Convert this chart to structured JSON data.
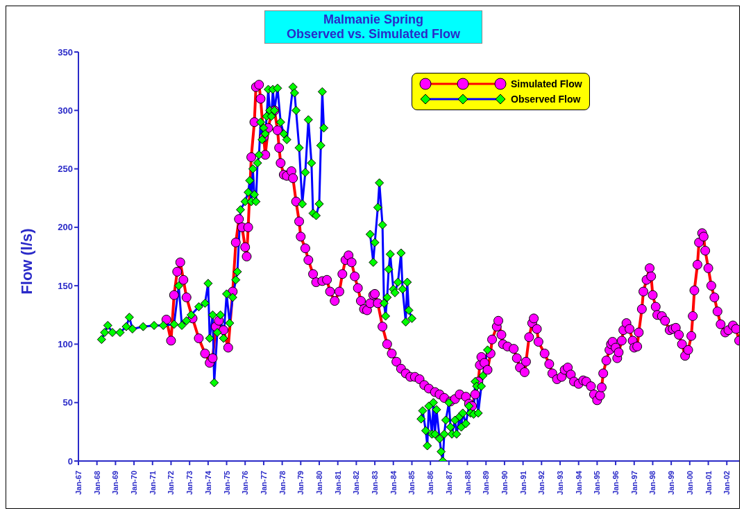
{
  "chart_data": {
    "type": "line",
    "title": "Malmanie Spring",
    "subtitle": "Observed vs. Simulated Flow",
    "ylabel": "Flow (l/s)",
    "xlim": [
      "1967-01",
      "2002-09"
    ],
    "xticks": [
      {
        "value": "1967-01",
        "label": "Jan-67"
      },
      {
        "value": "1968-01",
        "label": "Jan-68"
      },
      {
        "value": "1969-01",
        "label": "Jan-69"
      },
      {
        "value": "1970-01",
        "label": "Jan-70"
      },
      {
        "value": "1971-01",
        "label": "Jan-71"
      },
      {
        "value": "1972-01",
        "label": "Jan-72"
      },
      {
        "value": "1973-01",
        "label": "Jan-73"
      },
      {
        "value": "1974-01",
        "label": "Jan-74"
      },
      {
        "value": "1975-01",
        "label": "Jan-75"
      },
      {
        "value": "1976-01",
        "label": "Jan-76"
      },
      {
        "value": "1977-01",
        "label": "Jan-77"
      },
      {
        "value": "1978-01",
        "label": "Jan-78"
      },
      {
        "value": "1979-01",
        "label": "Jan-79"
      },
      {
        "value": "1980-01",
        "label": "Jan-80"
      },
      {
        "value": "1981-01",
        "label": "Jan-81"
      },
      {
        "value": "1982-01",
        "label": "Jan-82"
      },
      {
        "value": "1983-01",
        "label": "Jan-83"
      },
      {
        "value": "1984-01",
        "label": "Jan-84"
      },
      {
        "value": "1985-01",
        "label": "Jan-85"
      },
      {
        "value": "1986-01",
        "label": "Jan-86"
      },
      {
        "value": "1987-01",
        "label": "Jan-87"
      },
      {
        "value": "1988-01",
        "label": "Jan-88"
      },
      {
        "value": "1989-01",
        "label": "Jan-89"
      },
      {
        "value": "1990-01",
        "label": "Jan-90"
      },
      {
        "value": "1991-01",
        "label": "Jan-91"
      },
      {
        "value": "1992-01",
        "label": "Jan-92"
      },
      {
        "value": "1993-01",
        "label": "Jan-93"
      },
      {
        "value": "1994-01",
        "label": "Jan-94"
      },
      {
        "value": "1995-01",
        "label": "Jan-95"
      },
      {
        "value": "1996-01",
        "label": "Jan-96"
      },
      {
        "value": "1997-01",
        "label": "Jan-97"
      },
      {
        "value": "1998-01",
        "label": "Jan-98"
      },
      {
        "value": "1999-01",
        "label": "Jan-99"
      },
      {
        "value": "2000-01",
        "label": "Jan-00"
      },
      {
        "value": "2001-01",
        "label": "Jan-01"
      },
      {
        "value": "2002-01",
        "label": "Jan-02"
      }
    ],
    "ylim": [
      0,
      350
    ],
    "yticks": [
      0,
      50,
      100,
      150,
      200,
      250,
      300,
      350
    ],
    "legend": "top right",
    "series": [
      {
        "name": "Simulated Flow",
        "color": "#ff0000",
        "marker": "circle",
        "x": [
          "1971-10",
          "1972-01",
          "1972-03",
          "1972-05",
          "1972-07",
          "1972-09",
          "1972-11",
          "1973-03",
          "1973-07",
          "1973-11",
          "1974-02",
          "1974-04",
          "1974-06",
          "1974-08",
          "1974-11",
          "1975-02",
          "1975-05",
          "1975-07",
          "1975-09",
          "1975-11",
          "1976-01",
          "1976-02",
          "1976-03",
          "1976-05",
          "1976-07",
          "1976-08",
          "1976-10",
          "1976-11",
          "1977-01",
          "1977-02",
          "1977-04",
          "1977-06",
          "1977-08",
          "1977-10",
          "1977-11",
          "1977-12",
          "1978-02",
          "1978-04",
          "1978-07",
          "1978-08",
          "1978-10",
          "1978-12",
          "1979-01",
          "1979-04",
          "1979-06",
          "1979-09",
          "1979-11",
          "1980-03",
          "1980-06",
          "1980-08",
          "1980-11",
          "1981-02",
          "1981-04",
          "1981-06",
          "1981-08",
          "1981-10",
          "1981-12",
          "1982-02",
          "1982-04",
          "1982-06",
          "1982-08",
          "1982-10",
          "1982-12",
          "1983-01",
          "1983-03",
          "1983-06",
          "1983-09",
          "1983-12",
          "1984-03",
          "1984-06",
          "1984-09",
          "1984-12",
          "1985-03",
          "1985-06",
          "1985-09",
          "1985-12",
          "1986-04",
          "1986-07",
          "1986-10",
          "1987-02",
          "1987-05",
          "1987-08",
          "1987-12",
          "1988-02",
          "1988-04",
          "1988-06",
          "1988-08",
          "1988-09",
          "1988-10",
          "1988-12",
          "1989-02",
          "1989-04",
          "1989-05",
          "1989-08",
          "1989-09",
          "1989-11",
          "1989-12",
          "1990-03",
          "1990-07",
          "1990-09",
          "1990-11",
          "1991-02",
          "1991-03",
          "1991-05",
          "1991-07",
          "1991-08",
          "1991-10",
          "1991-11",
          "1992-03",
          "1992-06",
          "1992-08",
          "1992-11",
          "1993-02",
          "1993-04",
          "1993-06",
          "1993-08",
          "1993-10",
          "1994-01",
          "1994-04",
          "1994-06",
          "1994-09",
          "1994-11",
          "1995-01",
          "1995-03",
          "1995-04",
          "1995-05",
          "1995-07",
          "1995-09",
          "1995-10",
          "1995-11",
          "1996-01",
          "1996-02",
          "1996-03",
          "1996-05",
          "1996-06",
          "1996-08",
          "1996-10",
          "1996-12",
          "1997-01",
          "1997-03",
          "1997-04",
          "1997-06",
          "1997-07",
          "1997-09",
          "1997-11",
          "1997-12",
          "1998-01",
          "1998-03",
          "1998-04",
          "1998-07",
          "1998-09",
          "1998-12",
          "1999-02",
          "1999-04",
          "1999-06",
          "1999-08",
          "1999-10",
          "1999-12",
          "2000-02",
          "2000-03",
          "2000-04",
          "2000-06",
          "2000-07",
          "2000-09",
          "2000-10",
          "2000-11",
          "2001-01",
          "2001-03",
          "2001-05",
          "2001-07",
          "2001-09",
          "2001-12",
          "2002-02",
          "2002-05",
          "2002-07",
          "2002-09"
        ],
        "values": [
          121,
          103,
          142,
          162,
          170,
          155,
          140,
          122,
          105,
          92,
          84,
          88,
          115,
          120,
          112,
          97,
          145,
          187,
          207,
          200,
          183,
          175,
          200,
          260,
          290,
          320,
          322,
          310,
          277,
          262,
          285,
          297,
          300,
          283,
          268,
          255,
          245,
          244,
          248,
          242,
          222,
          205,
          192,
          182,
          172,
          160,
          153,
          154,
          155,
          145,
          137,
          145,
          160,
          172,
          176,
          170,
          158,
          148,
          137,
          130,
          129,
          135,
          142,
          143,
          135,
          115,
          100,
          92,
          85,
          79,
          75,
          72,
          72,
          70,
          65,
          62,
          59,
          57,
          54,
          51,
          53,
          57,
          55,
          49,
          47,
          57,
          68,
          82,
          89,
          84,
          78,
          92,
          104,
          115,
          120,
          108,
          100,
          98,
          96,
          88,
          80,
          76,
          85,
          106,
          118,
          122,
          113,
          102,
          92,
          83,
          75,
          70,
          72,
          78,
          80,
          74,
          68,
          66,
          69,
          68,
          64,
          57,
          52,
          56,
          63,
          75,
          86,
          95,
          100,
          102,
          97,
          88,
          93,
          103,
          112,
          118,
          113,
          103,
          97,
          98,
          110,
          130,
          145,
          155,
          165,
          158,
          142,
          132,
          125,
          124,
          120,
          112,
          113,
          114,
          108,
          100,
          90,
          95,
          107,
          124,
          146,
          168,
          187,
          195,
          192,
          180,
          165,
          150,
          140,
          128,
          117,
          110,
          112,
          116,
          113,
          103
        ]
      },
      {
        "name": "Observed Flow",
        "color": "#0000ff",
        "marker": "diamond",
        "x": [
          "1968-04",
          "1968-06",
          "1968-08",
          "1968-11",
          "1969-04",
          "1969-08",
          "1969-10",
          "1969-12",
          "1970-07",
          "1971-02",
          "1971-08",
          "1972-03",
          "1972-06",
          "1972-08",
          "1972-11",
          "1973-02",
          "1973-07",
          "1973-11",
          "1974-01",
          "1974-02",
          "1974-04",
          "1974-05",
          "1974-07",
          "1974-09",
          "1974-11",
          "1975-01",
          "1975-03",
          "1975-05",
          "1975-07",
          "1975-08",
          "1975-10",
          "1976-01",
          "1976-03",
          "1976-04",
          "1976-05",
          "1976-06",
          "1976-07",
          "1976-08",
          "1976-09",
          "1976-10",
          "1976-11",
          "1976-12",
          "1977-01",
          "1977-02",
          "1977-03",
          "1977-04",
          "1977-05",
          "1977-06",
          "1977-07",
          "1977-08",
          "1977-10",
          "1977-12",
          "1978-02",
          "1978-04",
          "1978-08",
          "1978-09",
          "1978-10",
          "1978-12",
          "1979-02",
          "1979-04",
          "1979-06",
          "1979-08",
          "1979-09",
          "1979-11",
          "1980-01",
          "1980-02",
          "1980-03",
          "1980-04",
          "1981-06",
          "1982-10",
          "1982-12",
          "1983-01",
          "1983-03",
          "1983-04",
          "1983-06",
          "1983-07",
          "1983-08",
          "1983-09",
          "1983-10",
          "1983-11",
          "1984-01",
          "1984-02",
          "1984-04",
          "1984-06",
          "1984-07",
          "1984-09",
          "1984-10",
          "1984-11",
          "1985-01",
          "1985-04",
          "1985-07",
          "1985-08",
          "1985-10",
          "1985-11",
          "1985-12",
          "1986-02",
          "1986-03",
          "1986-04",
          "1986-05",
          "1986-07",
          "1986-08",
          "1986-09",
          "1986-10",
          "1986-11",
          "1987-01",
          "1987-02",
          "1987-03",
          "1987-05",
          "1987-06",
          "1987-08",
          "1987-09",
          "1987-10",
          "1987-12",
          "1988-02",
          "1988-03",
          "1988-05",
          "1988-06",
          "1988-07",
          "1988-08",
          "1988-10",
          "1988-11",
          "1989-02"
        ],
        "values": [
          104,
          110,
          116,
          110,
          110,
          115,
          123,
          113,
          115,
          116,
          116,
          117,
          150,
          116,
          120,
          125,
          132,
          135,
          152,
          105,
          125,
          67,
          110,
          125,
          105,
          143,
          118,
          140,
          155,
          162,
          215,
          222,
          230,
          240,
          222,
          250,
          228,
          222,
          255,
          262,
          290,
          275,
          285,
          280,
          295,
          318,
          300,
          295,
          318,
          300,
          319,
          290,
          280,
          275,
          320,
          315,
          300,
          268,
          220,
          247,
          292,
          255,
          212,
          210,
          220,
          270,
          316,
          285,
          null,
          194,
          170,
          187,
          217,
          238,
          202,
          135,
          124,
          140,
          164,
          177,
          147,
          144,
          153,
          178,
          147,
          119,
          153,
          129,
          122,
          null,
          36,
          43,
          26,
          13,
          47,
          23,
          50,
          23,
          44,
          19,
          8,
          0,
          23,
          35,
          50,
          29,
          23,
          35,
          23,
          38,
          29,
          41,
          32,
          47,
          41,
          40,
          68,
          64,
          41,
          64,
          73,
          95
        ]
      }
    ]
  }
}
